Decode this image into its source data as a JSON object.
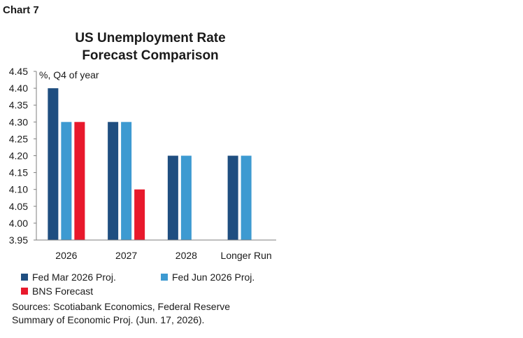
{
  "chart_label": "Chart 7",
  "title_lines": [
    "US Unemployment Rate",
    "Forecast Comparison"
  ],
  "sources_lines": [
    "Sources: Scotiabank Economics, Federal Reserve",
    "Summary of Economic Proj. (Jun. 17, 2026)."
  ],
  "chart_data": {
    "type": "bar",
    "title": "US Unemployment Rate Forecast Comparison",
    "unit_label": "%, Q4 of year",
    "categories": [
      "2026",
      "2027",
      "2028",
      "Longer Run"
    ],
    "series": [
      {
        "name": "Fed Mar 2026 Proj.",
        "color": "#1f4e80",
        "values": [
          4.4,
          4.3,
          4.2,
          4.2
        ]
      },
      {
        "name": "Fed Jun 2026 Proj.",
        "color": "#3d9ad1",
        "values": [
          4.3,
          4.3,
          4.2,
          4.2
        ]
      },
      {
        "name": "BNS Forecast",
        "color": "#e8192c",
        "values": [
          4.3,
          4.1,
          null,
          null
        ]
      }
    ],
    "ylim": [
      3.95,
      4.45
    ],
    "yticks": [
      "3.95",
      "4.00",
      "4.05",
      "4.10",
      "4.15",
      "4.20",
      "4.25",
      "4.30",
      "4.35",
      "4.40",
      "4.45"
    ],
    "grid": false,
    "legend_position": "bottom"
  }
}
